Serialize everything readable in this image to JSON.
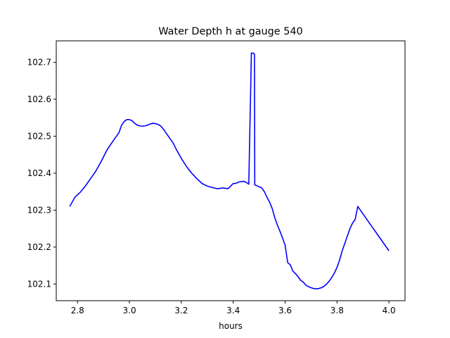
{
  "chart_data": {
    "type": "line",
    "title": "Water Depth h at gauge 540",
    "xlabel": "hours",
    "ylabel": "",
    "xlim": [
      2.718,
      4.062
    ],
    "ylim": [
      102.055,
      102.758
    ],
    "xticks": [
      2.8,
      3.0,
      3.2,
      3.4,
      3.6,
      3.8,
      4.0
    ],
    "yticks": [
      102.1,
      102.2,
      102.3,
      102.4,
      102.5,
      102.6,
      102.7
    ],
    "xtick_labels": [
      "2.8",
      "3.0",
      "3.2",
      "3.4",
      "3.6",
      "3.8",
      "4.0"
    ],
    "ytick_labels": [
      "102.1",
      "102.2",
      "102.3",
      "102.4",
      "102.5",
      "102.6",
      "102.7"
    ],
    "grid": false,
    "legend": "none",
    "series": [
      {
        "color": "#0000ff",
        "x": [
          2.77,
          2.79,
          2.81,
          2.83,
          2.85,
          2.87,
          2.89,
          2.91,
          2.92,
          2.94,
          2.96,
          2.97,
          2.98,
          2.99,
          3.0,
          3.01,
          3.02,
          3.03,
          3.04,
          3.05,
          3.06,
          3.07,
          3.08,
          3.09,
          3.1,
          3.11,
          3.12,
          3.13,
          3.14,
          3.15,
          3.16,
          3.17,
          3.18,
          3.2,
          3.22,
          3.24,
          3.26,
          3.28,
          3.3,
          3.32,
          3.34,
          3.36,
          3.38,
          3.39,
          3.4,
          3.41,
          3.42,
          3.44,
          3.45,
          3.46,
          3.47,
          3.475,
          3.476,
          3.482,
          3.483,
          3.485,
          3.5,
          3.51,
          3.52,
          3.53,
          3.54,
          3.55,
          3.56,
          3.57,
          3.58,
          3.59,
          3.6,
          3.61,
          3.62,
          3.63,
          3.64,
          3.65,
          3.66,
          3.67,
          3.68,
          3.69,
          3.7,
          3.71,
          3.72,
          3.73,
          3.74,
          3.75,
          3.76,
          3.77,
          3.78,
          3.79,
          3.8,
          3.81,
          3.82,
          3.83,
          3.84,
          3.85,
          3.86,
          3.87,
          3.88,
          3.89,
          3.9,
          3.91,
          3.92,
          3.93,
          3.94,
          3.95,
          3.96,
          3.97,
          3.98,
          3.99,
          4.0
        ],
        "y": [
          102.31,
          102.335,
          102.348,
          102.365,
          102.385,
          102.405,
          102.43,
          102.458,
          102.47,
          102.49,
          102.51,
          102.53,
          102.54,
          102.545,
          102.545,
          102.542,
          102.535,
          102.53,
          102.528,
          102.527,
          102.528,
          102.53,
          102.533,
          102.535,
          102.534,
          102.532,
          102.528,
          102.52,
          102.51,
          102.5,
          102.49,
          102.48,
          102.465,
          102.44,
          102.418,
          102.4,
          102.385,
          102.372,
          102.365,
          102.361,
          102.358,
          102.36,
          102.358,
          102.365,
          102.372,
          102.372,
          102.376,
          102.378,
          102.375,
          102.37,
          102.725,
          102.725,
          102.725,
          102.722,
          102.368,
          102.368,
          102.363,
          102.36,
          102.35,
          102.335,
          102.322,
          102.305,
          102.28,
          102.26,
          102.243,
          102.225,
          102.205,
          102.158,
          102.152,
          102.135,
          102.128,
          102.12,
          102.11,
          102.105,
          102.097,
          102.093,
          102.09,
          102.088,
          102.087,
          102.088,
          102.09,
          102.094,
          102.1,
          102.108,
          102.118,
          102.13,
          102.145,
          102.165,
          102.19,
          102.21,
          102.23,
          102.25,
          102.265,
          102.275,
          102.31,
          102.3,
          102.29,
          102.28,
          102.27,
          102.26,
          102.25,
          102.24,
          102.23,
          102.22,
          102.21,
          102.2,
          102.19
        ]
      }
    ]
  }
}
